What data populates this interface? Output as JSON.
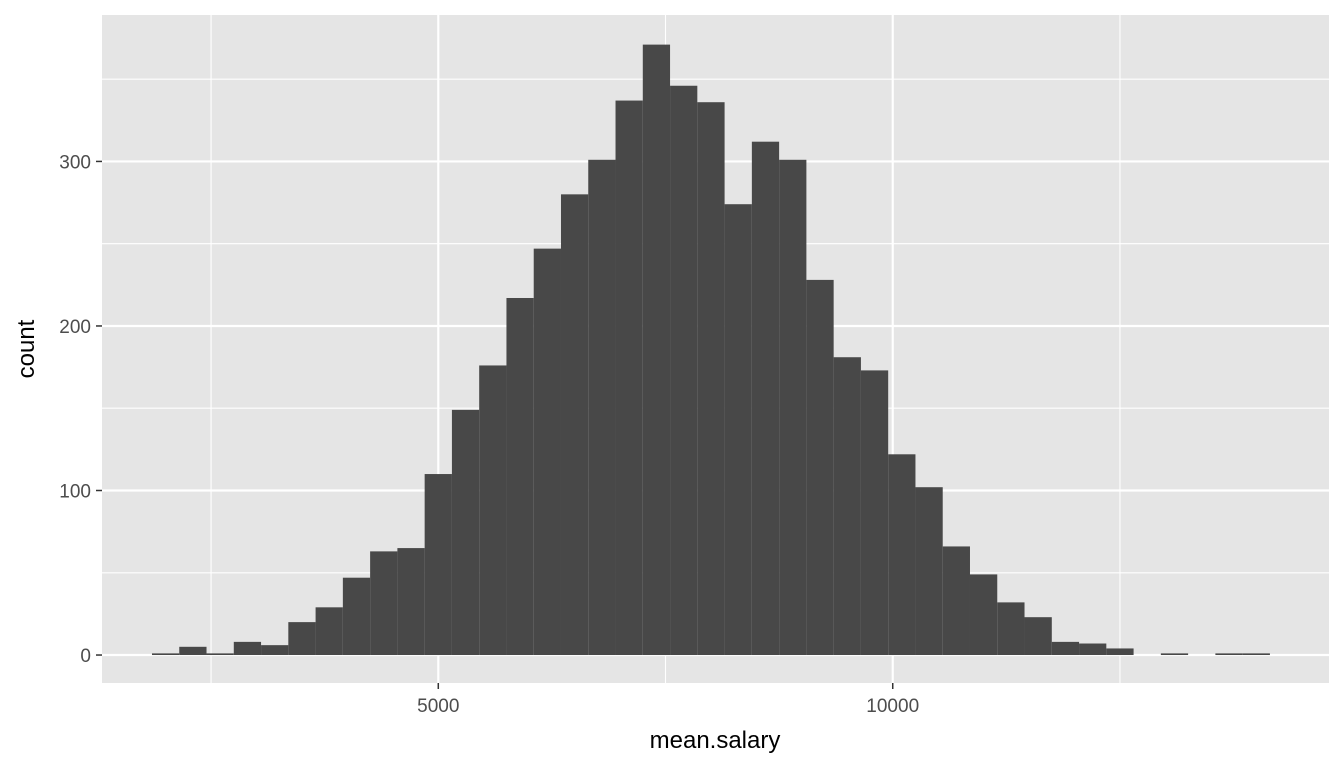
{
  "chart_data": {
    "type": "bar",
    "subtype": "histogram",
    "xlabel": "mean.salary",
    "ylabel": "count",
    "x_ticks": [
      5000,
      10000
    ],
    "y_ticks": [
      0,
      100,
      200,
      300
    ],
    "xlim": [
      1300,
      14800
    ],
    "ylim": [
      -17,
      389
    ],
    "bin_width": 300,
    "bins_x": [
      2000,
      2300,
      2600,
      2900,
      3200,
      3500,
      3800,
      4100,
      4400,
      4700,
      5000,
      5300,
      5600,
      5900,
      6200,
      6500,
      6800,
      7100,
      7400,
      7700,
      8000,
      8300,
      8600,
      8900,
      9200,
      9500,
      9800,
      10100,
      10400,
      10700,
      11000,
      11300,
      11600,
      11900,
      12200,
      12500,
      12800,
      13100,
      13400,
      13700,
      14000
    ],
    "values": [
      1,
      5,
      1,
      8,
      6,
      20,
      29,
      47,
      63,
      65,
      110,
      149,
      176,
      217,
      247,
      280,
      301,
      337,
      371,
      346,
      336,
      274,
      312,
      301,
      228,
      181,
      173,
      122,
      102,
      66,
      49,
      32,
      23,
      8,
      7,
      4,
      0,
      1,
      0,
      1,
      1
    ],
    "colors": {
      "panel_background": "#e5e5e5",
      "grid_major": "#ffffff",
      "bar_fill": "#484848",
      "tick_text": "#4d4d4d",
      "axis_title": "#000000"
    },
    "grid": true
  }
}
